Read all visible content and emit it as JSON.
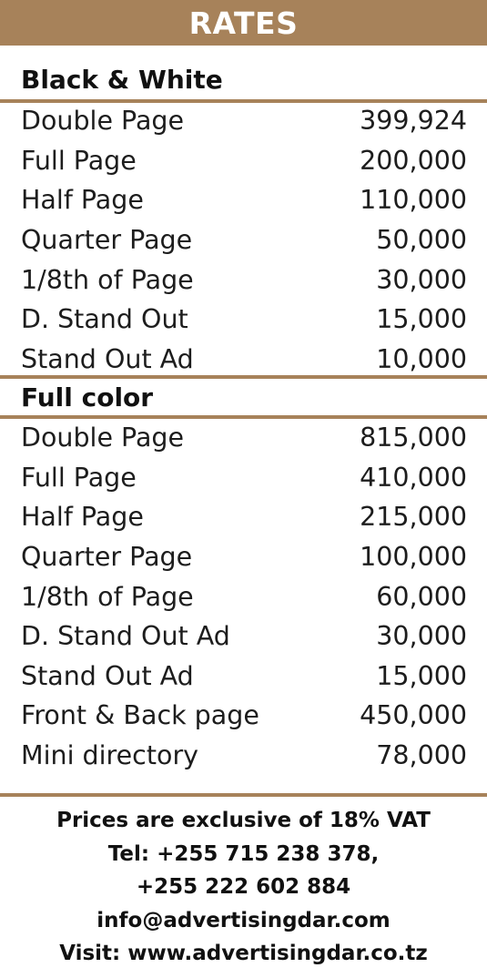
{
  "header": {
    "title": "RATES"
  },
  "bw": {
    "title": "Black & White",
    "rows": [
      {
        "item": "Double Page",
        "price": "399,924"
      },
      {
        "item": "Full Page",
        "price": "200,000"
      },
      {
        "item": "Half Page",
        "price": "110,000"
      },
      {
        "item": "Quarter Page",
        "price": "50,000"
      },
      {
        "item": "1/8th of Page",
        "price": "30,000"
      },
      {
        "item": "D. Stand Out",
        "price": "15,000"
      },
      {
        "item": "Stand Out Ad",
        "price": "10,000"
      }
    ]
  },
  "color": {
    "title": "Full color",
    "rows": [
      {
        "item": "Double Page",
        "price": "815,000"
      },
      {
        "item": "Full Page",
        "price": "410,000"
      },
      {
        "item": "Half Page",
        "price": "215,000"
      },
      {
        "item": "Quarter Page",
        "price": "100,000"
      },
      {
        "item": "1/8th of Page",
        "price": "60,000"
      },
      {
        "item": "D. Stand Out Ad",
        "price": "30,000"
      },
      {
        "item": "Stand Out Ad",
        "price": "15,000"
      },
      {
        "item": "Front & Back page",
        "price": "450,000"
      },
      {
        "item": "Mini directory",
        "price": "78,000"
      }
    ]
  },
  "footer": {
    "vat": "Prices are exclusive of 18% VAT",
    "tel1": "Tel: +255 715 238 378,",
    "tel2": "+255 222 602 884",
    "email": "info@advertisingdar.com",
    "visit": "Visit: www.advertisingdar.co.tz"
  },
  "colors": {
    "accent": "#a7825a",
    "text": "#1d1d1d",
    "header_text": "#ffffff"
  }
}
